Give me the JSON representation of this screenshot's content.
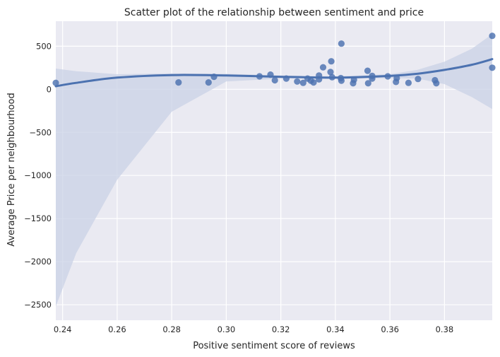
{
  "chart_data": {
    "type": "scatter",
    "title": "Scatter plot of the relationship between sentiment and price",
    "xlabel": "Positive sentiment score of reviews",
    "ylabel": "Average Price per neighbourhood",
    "xlim": [
      0.2375,
      0.3975
    ],
    "ylim": [
      -2680,
      790
    ],
    "x_ticks": [
      {
        "value": 0.24,
        "label": "0.24"
      },
      {
        "value": 0.26,
        "label": "0.26"
      },
      {
        "value": 0.28,
        "label": "0.28"
      },
      {
        "value": 0.3,
        "label": "0.30"
      },
      {
        "value": 0.32,
        "label": "0.32"
      },
      {
        "value": 0.34,
        "label": "0.34"
      },
      {
        "value": 0.36,
        "label": "0.36"
      },
      {
        "value": 0.38,
        "label": "0.38"
      }
    ],
    "y_ticks": [
      {
        "value": 500,
        "label": "500"
      },
      {
        "value": 0,
        "label": "0"
      },
      {
        "value": -500,
        "label": "−500"
      },
      {
        "value": -1000,
        "label": "−1000"
      },
      {
        "value": -1500,
        "label": "−1500"
      },
      {
        "value": -2000,
        "label": "−2000"
      },
      {
        "value": -2500,
        "label": "−2500"
      }
    ],
    "grid": true,
    "points": [
      {
        "x": 0.2375,
        "y": 75
      },
      {
        "x": 0.2825,
        "y": 80
      },
      {
        "x": 0.2935,
        "y": 80
      },
      {
        "x": 0.2955,
        "y": 145
      },
      {
        "x": 0.3122,
        "y": 150
      },
      {
        "x": 0.3162,
        "y": 170
      },
      {
        "x": 0.3178,
        "y": 105
      },
      {
        "x": 0.322,
        "y": 125
      },
      {
        "x": 0.326,
        "y": 90
      },
      {
        "x": 0.3282,
        "y": 75
      },
      {
        "x": 0.3298,
        "y": 125
      },
      {
        "x": 0.331,
        "y": 100
      },
      {
        "x": 0.332,
        "y": 80
      },
      {
        "x": 0.334,
        "y": 160
      },
      {
        "x": 0.334,
        "y": 115
      },
      {
        "x": 0.3355,
        "y": 255
      },
      {
        "x": 0.3382,
        "y": 200
      },
      {
        "x": 0.3385,
        "y": 325
      },
      {
        "x": 0.3388,
        "y": 140
      },
      {
        "x": 0.3422,
        "y": 530
      },
      {
        "x": 0.342,
        "y": 130
      },
      {
        "x": 0.3422,
        "y": 100
      },
      {
        "x": 0.3465,
        "y": 70
      },
      {
        "x": 0.3468,
        "y": 110
      },
      {
        "x": 0.3518,
        "y": 215
      },
      {
        "x": 0.352,
        "y": 70
      },
      {
        "x": 0.3535,
        "y": 155
      },
      {
        "x": 0.3535,
        "y": 125
      },
      {
        "x": 0.3592,
        "y": 150
      },
      {
        "x": 0.3622,
        "y": 85
      },
      {
        "x": 0.3625,
        "y": 130
      },
      {
        "x": 0.3668,
        "y": 75
      },
      {
        "x": 0.3703,
        "y": 120
      },
      {
        "x": 0.3765,
        "y": 105
      },
      {
        "x": 0.377,
        "y": 70
      },
      {
        "x": 0.3975,
        "y": 620
      },
      {
        "x": 0.3975,
        "y": 250
      }
    ],
    "regression": {
      "order": 3,
      "x": [
        0.2375,
        0.245,
        0.26,
        0.28,
        0.3,
        0.32,
        0.34,
        0.36,
        0.37,
        0.38,
        0.39,
        0.3975
      ],
      "y": [
        35,
        75,
        135,
        165,
        160,
        145,
        135,
        155,
        180,
        225,
        285,
        350
      ],
      "ci_upper": [
        240,
        210,
        175,
        185,
        180,
        160,
        150,
        175,
        225,
        320,
        470,
        640
      ],
      "ci_lower": [
        -2520,
        -1900,
        -1050,
        -260,
        90,
        125,
        120,
        130,
        125,
        60,
        -90,
        -230
      ]
    },
    "colors": {
      "plot_background": "#EAEAF2",
      "grid": "#FFFFFF",
      "point": "#4C72B0",
      "line": "#4C72B0",
      "ci_band": "#C9D2E6"
    }
  }
}
